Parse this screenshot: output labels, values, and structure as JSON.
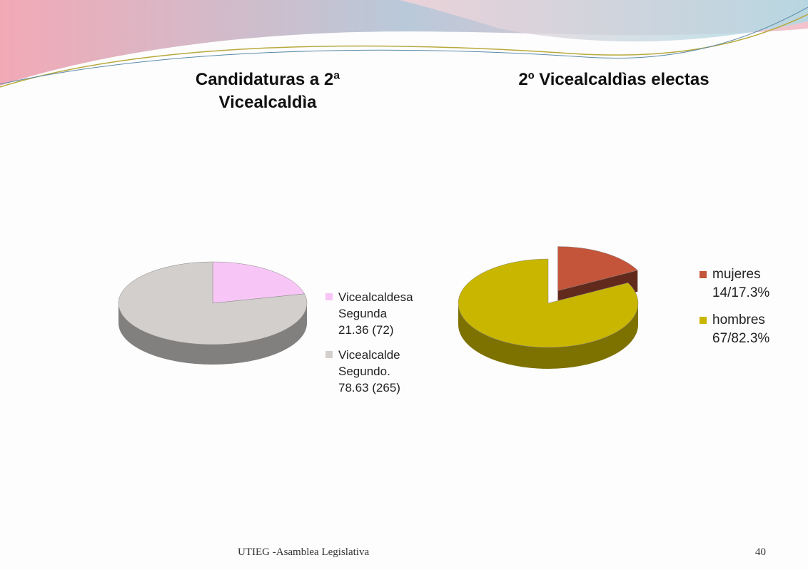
{
  "chart_data": [
    {
      "type": "pie",
      "title": "Candidaturas a 2ª Vicealcaldìa",
      "categories": [
        "Vicealcaldesa Segunda 21.36 (72)",
        "Vicealcalde Segundo. 78.63 (265)"
      ],
      "values": [
        21.36,
        78.63
      ],
      "colors": [
        "#f8c6f6",
        "#d2cfcc"
      ],
      "legend": "right"
    },
    {
      "type": "pie",
      "title": "2º Vicealcaldìas electas",
      "categories": [
        "mujeres 14/17.3%",
        "hombres 67/82.3%"
      ],
      "values": [
        17.3,
        82.3
      ],
      "colors": [
        "#c4553a",
        "#c9b600"
      ],
      "legend": "right"
    }
  ],
  "footer": {
    "text": "UTIEG -Asamblea Legislativa",
    "page_number": 40
  }
}
